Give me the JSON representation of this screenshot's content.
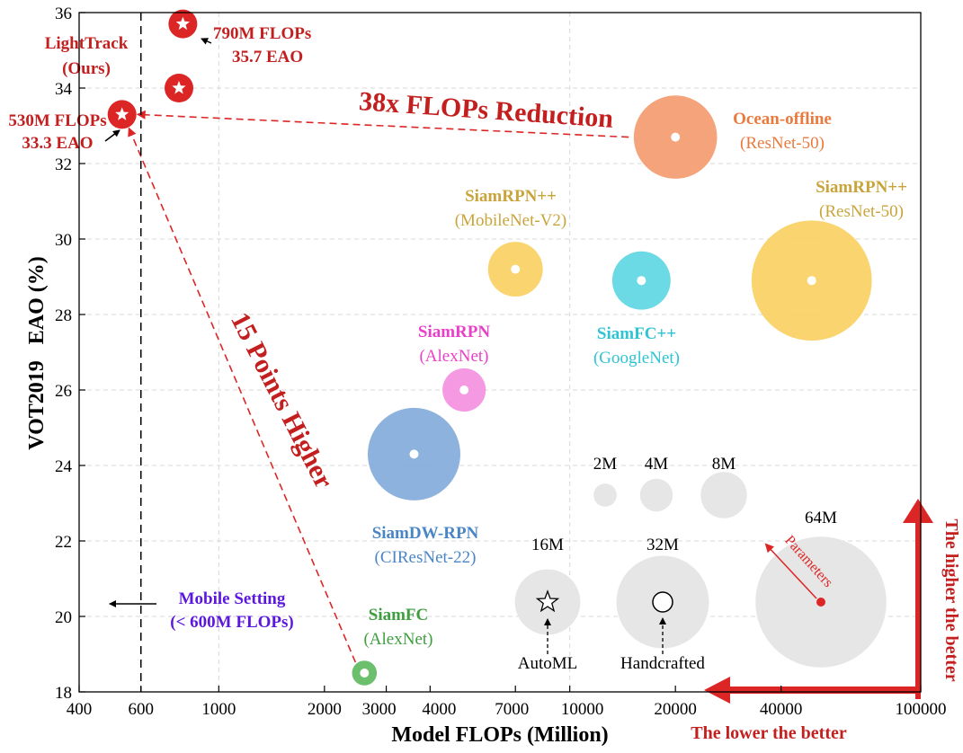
{
  "chart_data": {
    "type": "scatter",
    "title": "",
    "xlabel": "Model FLOPs (Million)",
    "ylabel": "VOT2019   EAO (%)",
    "x_scale": "log",
    "xlim": [
      400,
      100000
    ],
    "ylim": [
      18,
      36
    ],
    "x_ticks": [
      {
        "value": 400,
        "label": "400"
      },
      {
        "value": 600,
        "label": "600"
      },
      {
        "value": 1000,
        "label": "1000"
      },
      {
        "value": 2000,
        "label": "2000"
      },
      {
        "value": 3000,
        "label": "3000"
      },
      {
        "value": 4000,
        "label": "4000"
      },
      {
        "value": 7000,
        "label": "7000"
      },
      {
        "value": 10000,
        "label": "10000"
      },
      {
        "value": 20000,
        "label": "20000"
      },
      {
        "value": 40000,
        "label": "40000"
      },
      {
        "value": 100000,
        "label": "100000"
      }
    ],
    "y_ticks": [
      {
        "value": 18,
        "label": "18"
      },
      {
        "value": 20,
        "label": "20"
      },
      {
        "value": 22,
        "label": "22"
      },
      {
        "value": 24,
        "label": "24"
      },
      {
        "value": 26,
        "label": "26"
      },
      {
        "value": 28,
        "label": "28"
      },
      {
        "value": 30,
        "label": "30"
      },
      {
        "value": 32,
        "label": "32"
      },
      {
        "value": 34,
        "label": "34"
      },
      {
        "value": 36,
        "label": "36"
      }
    ],
    "mobile_threshold": 600,
    "series": [
      {
        "name": "LightTrack (Ours)",
        "flops": 530,
        "eao": 33.3,
        "params_m": 1.97,
        "color": "#dc2626",
        "marker": "star",
        "labels": [
          "530M FLOPs",
          "33.3 EAO"
        ]
      },
      {
        "name": "LightTrack (Ours)",
        "flops": 790,
        "eao": 35.7,
        "params_m": 3.08,
        "color": "#dc2626",
        "marker": "star",
        "labels": [
          "790M FLOPs",
          "35.7 EAO"
        ]
      },
      {
        "name": "LightTrack (Ours)",
        "flops": 770,
        "eao": 34.0,
        "params_m": 3.0,
        "color": "#dc2626",
        "marker": "star"
      },
      {
        "name": "Ocean-offline",
        "backbone": "(ResNet-50)",
        "flops": 20000,
        "eao": 32.7,
        "params_m": 25.9,
        "color": "#f4996b"
      },
      {
        "name": "SiamRPN++",
        "backbone": "(MobileNet-V2)",
        "flops": 7000,
        "eao": 29.2,
        "params_m": 11.2,
        "color": "#f9cf5e"
      },
      {
        "name": "SiamRPN++",
        "backbone": "(ResNet-50)",
        "flops": 48900,
        "eao": 28.9,
        "params_m": 54.0,
        "color": "#f9cf5e"
      },
      {
        "name": "SiamFC++",
        "backbone": "(GoogleNet)",
        "flops": 16000,
        "eao": 28.9,
        "params_m": 12.7,
        "color": "#5cd6e2"
      },
      {
        "name": "SiamRPN",
        "backbone": "(AlexNet)",
        "flops": 5000,
        "eao": 26.0,
        "params_m": 7.0,
        "color": "#f58ee0"
      },
      {
        "name": "SiamDW-RPN",
        "backbone": "(CIResNet-22)",
        "flops": 3600,
        "eao": 24.3,
        "params_m": 32.0,
        "color": "#7faad9"
      },
      {
        "name": "SiamFC",
        "backbone": "(AlexNet)",
        "flops": 2600,
        "eao": 18.5,
        "params_m": 2.3,
        "color": "#5cb85c"
      }
    ],
    "size_legend": [
      {
        "label": "2M",
        "params_m": 2
      },
      {
        "label": "4M",
        "params_m": 4
      },
      {
        "label": "8M",
        "params_m": 8
      },
      {
        "label": "16M",
        "params_m": 16
      },
      {
        "label": "32M",
        "params_m": 32
      },
      {
        "label": "64M",
        "params_m": 64
      }
    ],
    "legend_markers": {
      "automl": "AutoML",
      "handcrafted": "Handcrafted",
      "parameters": "Parameters"
    },
    "annotations": {
      "flops_reduction": "38x FLOPs Reduction",
      "points_higher": "15 Points Higher",
      "mobile_setting": [
        "Mobile Setting",
        "(< 600M FLOPs)"
      ],
      "higher_better": "The higher the better",
      "lower_better": "The lower the better"
    }
  }
}
